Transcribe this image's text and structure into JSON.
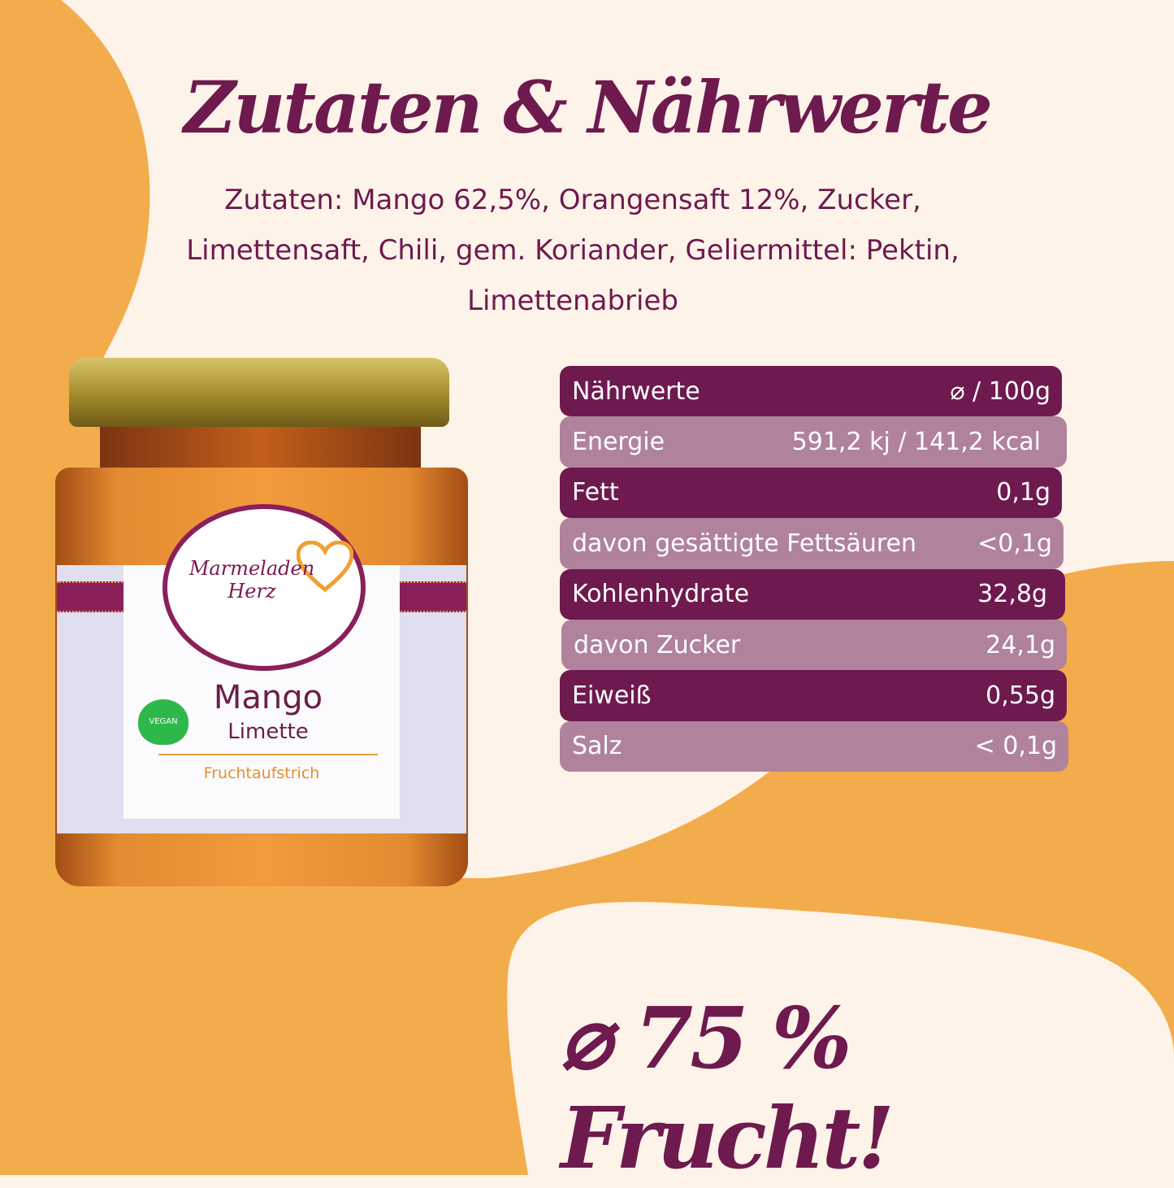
{
  "colors": {
    "background": "#fdf3e9",
    "orange": "#f3ac4c",
    "purple": "#6e1a4e",
    "purple_light": "#b0829c"
  },
  "title": "Zutaten & Nährwerte",
  "ingredients": [
    "Zutaten: Mango 62,5%, Orangensaft 12%, Zucker,",
    "Limettensaft, Chili, gem. Koriander, Geliermittel: Pektin,",
    "Limettenabrieb"
  ],
  "product": {
    "brand": "Marmeladen Herz",
    "name": "Mango",
    "variety": "Limette",
    "type": "Fruchtaufstrich",
    "badge": "VEGAN"
  },
  "nutrition": {
    "header": {
      "label": "Nährwerte",
      "value": "⌀ / 100g"
    },
    "rows": [
      {
        "label": "Energie",
        "value": "591,2 kj / 141,2 kcal"
      },
      {
        "label": "Fett",
        "value": "0,1g"
      },
      {
        "label": "davon gesättigte Fettsäuren",
        "value": "<0,1g"
      },
      {
        "label": "Kohlenhydrate",
        "value": "32,8g"
      },
      {
        "label": "davon Zucker",
        "value": "24,1g"
      },
      {
        "label": "Eiweiß",
        "value": "0,55g"
      },
      {
        "label": "Salz",
        "value": "< 0,1g"
      }
    ]
  },
  "fruit_claim": "⌀ 75 % Frucht!"
}
